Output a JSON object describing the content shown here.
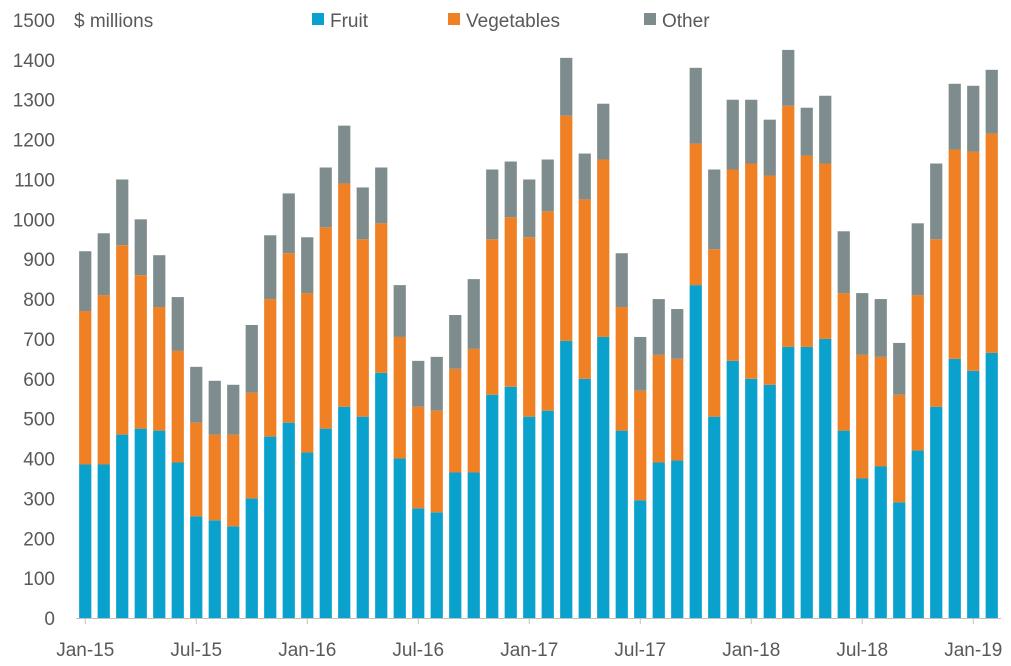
{
  "chart_data": {
    "type": "bar",
    "stacked": true,
    "unit_label": "$ millions",
    "title": "",
    "xlabel": "",
    "ylabel": "",
    "ylim": [
      0,
      1500
    ],
    "y_ticks": [
      0,
      100,
      200,
      300,
      400,
      500,
      600,
      700,
      800,
      900,
      1000,
      1100,
      1200,
      1300,
      1400,
      1500
    ],
    "grid": false,
    "legend_position": "top",
    "x_tick_labels": [
      {
        "index": 0,
        "label": "Jan-15"
      },
      {
        "index": 6,
        "label": "Jul-15"
      },
      {
        "index": 12,
        "label": "Jan-16"
      },
      {
        "index": 18,
        "label": "Jul-16"
      },
      {
        "index": 24,
        "label": "Jan-17"
      },
      {
        "index": 30,
        "label": "Jul-17"
      },
      {
        "index": 36,
        "label": "Jan-18"
      },
      {
        "index": 42,
        "label": "Jul-18"
      },
      {
        "index": 48,
        "label": "Jan-19"
      }
    ],
    "categories": [
      "Jan-15",
      "Feb-15",
      "Mar-15",
      "Apr-15",
      "May-15",
      "Jun-15",
      "Jul-15",
      "Aug-15",
      "Sep-15",
      "Oct-15",
      "Nov-15",
      "Dec-15",
      "Jan-16",
      "Feb-16",
      "Mar-16",
      "Apr-16",
      "May-16",
      "Jun-16",
      "Jul-16",
      "Aug-16",
      "Sep-16",
      "Oct-16",
      "Nov-16",
      "Dec-16",
      "Jan-17",
      "Feb-17",
      "Mar-17",
      "Apr-17",
      "May-17",
      "Jun-17",
      "Jul-17",
      "Aug-17",
      "Sep-17",
      "Oct-17",
      "Nov-17",
      "Dec-17",
      "Jan-18",
      "Feb-18",
      "Mar-18",
      "Apr-18",
      "May-18",
      "Jun-18",
      "Jul-18",
      "Aug-18",
      "Sep-18",
      "Oct-18",
      "Nov-18",
      "Dec-18",
      "Jan-19",
      "Feb-19"
    ],
    "series": [
      {
        "name": "Fruit",
        "color": "#0aa1cd",
        "values": [
          385,
          385,
          460,
          475,
          470,
          390,
          255,
          245,
          230,
          300,
          455,
          490,
          415,
          475,
          530,
          505,
          615,
          400,
          275,
          265,
          365,
          365,
          560,
          580,
          505,
          520,
          695,
          600,
          705,
          470,
          295,
          390,
          395,
          835,
          505,
          645,
          600,
          585,
          680,
          680,
          700,
          470,
          350,
          380,
          290,
          420,
          530,
          650,
          620,
          665
        ]
      },
      {
        "name": "Vegetables",
        "color": "#ef8024",
        "values": [
          385,
          425,
          475,
          385,
          310,
          280,
          235,
          215,
          230,
          265,
          345,
          425,
          400,
          505,
          560,
          445,
          375,
          305,
          255,
          255,
          260,
          310,
          390,
          425,
          450,
          500,
          565,
          450,
          445,
          310,
          275,
          270,
          255,
          355,
          420,
          480,
          540,
          525,
          605,
          480,
          440,
          345,
          310,
          275,
          270,
          390,
          420,
          525,
          550,
          550
        ]
      },
      {
        "name": "Other",
        "color": "#7f8c8d",
        "values": [
          150,
          155,
          165,
          140,
          130,
          135,
          140,
          135,
          125,
          170,
          160,
          150,
          140,
          150,
          145,
          130,
          140,
          130,
          115,
          135,
          135,
          175,
          175,
          140,
          145,
          130,
          145,
          115,
          140,
          135,
          135,
          140,
          125,
          190,
          200,
          175,
          160,
          140,
          140,
          120,
          170,
          155,
          155,
          145,
          130,
          180,
          190,
          165,
          165,
          160
        ]
      }
    ]
  }
}
